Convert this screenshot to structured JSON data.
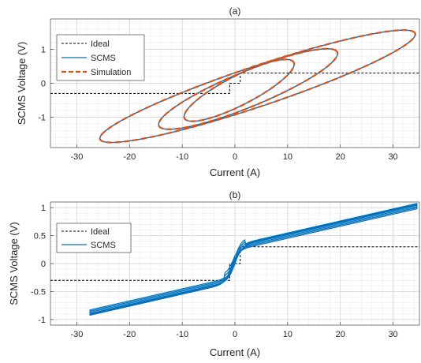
{
  "chart_data": [
    {
      "type": "line",
      "title": "(a)",
      "xlabel": "Current (A)",
      "ylabel": "SCMS Voltage (V)",
      "xlim": [
        -35,
        35
      ],
      "ylim": [
        -1.9,
        1.9
      ],
      "xticks": [
        -30,
        -20,
        -10,
        0,
        10,
        20,
        30
      ],
      "xtick_labels": [
        "-30",
        "-20",
        "-10",
        "0",
        "10",
        "20",
        "30"
      ],
      "yticks": [
        -1,
        0,
        1
      ],
      "ytick_labels": [
        "-1",
        "0",
        "1"
      ],
      "grid": true,
      "minor_grid": true,
      "legend_position": "top-left",
      "series": [
        {
          "name": "Ideal",
          "style": "dashed",
          "color": "#000000",
          "x": [
            -35,
            -1,
            -1,
            1,
            1,
            35
          ],
          "y": [
            -0.3,
            -0.3,
            0,
            0,
            0.3,
            0.3
          ]
        },
        {
          "name": "SCMS",
          "style": "solid",
          "color": "#0072BD",
          "loops": [
            {
              "cx": 4.3,
              "cy": -0.09,
              "ax": 29.5,
              "ay": 1.62,
              "bx": 5.0,
              "by": -0.36
            },
            {
              "cx": 2.5,
              "cy": -0.17,
              "ax": 16.5,
              "ay": 1.15,
              "bx": 4.0,
              "by": -0.3
            },
            {
              "cx": 0.8,
              "cy": -0.21,
              "ax": 10.0,
              "ay": 0.88,
              "bx": 3.0,
              "by": -0.24
            }
          ]
        },
        {
          "name": "Simulation",
          "style": "dashed",
          "color": "#D95319",
          "loops": [
            {
              "cx": 4.3,
              "cy": -0.09,
              "ax": 29.5,
              "ay": 1.62,
              "bx": 5.0,
              "by": -0.36
            },
            {
              "cx": 2.5,
              "cy": -0.17,
              "ax": 16.5,
              "ay": 1.15,
              "bx": 4.0,
              "by": -0.3
            },
            {
              "cx": 0.8,
              "cy": -0.21,
              "ax": 10.0,
              "ay": 0.88,
              "bx": 3.0,
              "by": -0.24
            }
          ]
        }
      ]
    },
    {
      "type": "line",
      "title": "(b)",
      "xlabel": "Current (A)",
      "ylabel": "SCMS Voltage (V)",
      "xlim": [
        -35,
        35
      ],
      "ylim": [
        -1.1,
        1.1
      ],
      "xticks": [
        -30,
        -20,
        -10,
        0,
        10,
        20,
        30
      ],
      "xtick_labels": [
        "-30",
        "-20",
        "-10",
        "0",
        "10",
        "20",
        "30"
      ],
      "yticks": [
        -1,
        -0.5,
        0,
        0.5,
        1
      ],
      "ytick_labels": [
        "-1",
        "-0.5",
        "0",
        "0.5",
        "1"
      ],
      "grid": true,
      "minor_grid": true,
      "legend_position": "top-left",
      "series": [
        {
          "name": "Ideal",
          "style": "dashed",
          "color": "#000000",
          "x": [
            -35,
            -1,
            -1,
            1,
            1,
            35
          ],
          "y": [
            -0.3,
            -0.3,
            0,
            0,
            0.3,
            0.3
          ]
        },
        {
          "name": "SCMS",
          "style": "solid",
          "color": "#0072BD",
          "envelope": {
            "x_min": -27.5,
            "x_max": 34.5,
            "slope": 0.0215,
            "offset": 0.3,
            "knee": 1.3,
            "hysteresis": [
              0.0,
              0.035,
              0.07,
              0.105
            ]
          }
        }
      ]
    }
  ]
}
